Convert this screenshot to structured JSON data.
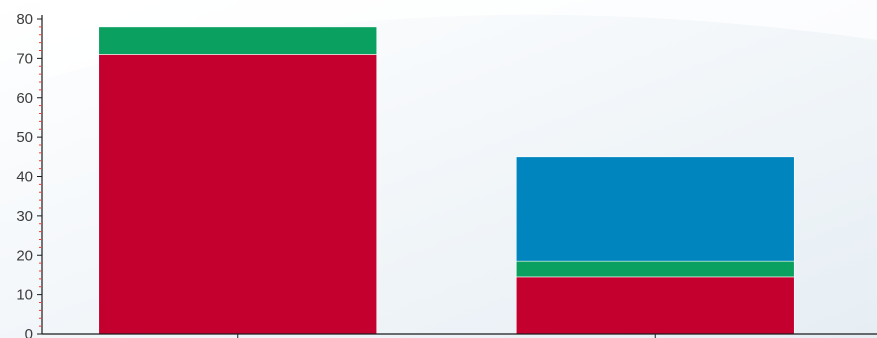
{
  "chart_data": {
    "type": "bar",
    "stacked": true,
    "categories": [
      "",
      ""
    ],
    "series": [
      {
        "values": [
          71,
          14.5
        ],
        "color": "#c4002f"
      },
      {
        "values": [
          7,
          4
        ],
        "color": "#0aa060"
      },
      {
        "values": [
          0,
          26.5
        ],
        "color": "#0085bf"
      }
    ],
    "ylim": [
      0,
      80
    ],
    "yticks": [
      "0",
      "10",
      "20",
      "30",
      "40",
      "50",
      "60",
      "70",
      "80"
    ],
    "grid": false,
    "legend": "none",
    "colors": {
      "background_gradient_start": "#ffffff",
      "background_gradient_end": "#eaf1f6",
      "axis": "#1a1a1a",
      "minor_tick": "#e0473a"
    }
  }
}
